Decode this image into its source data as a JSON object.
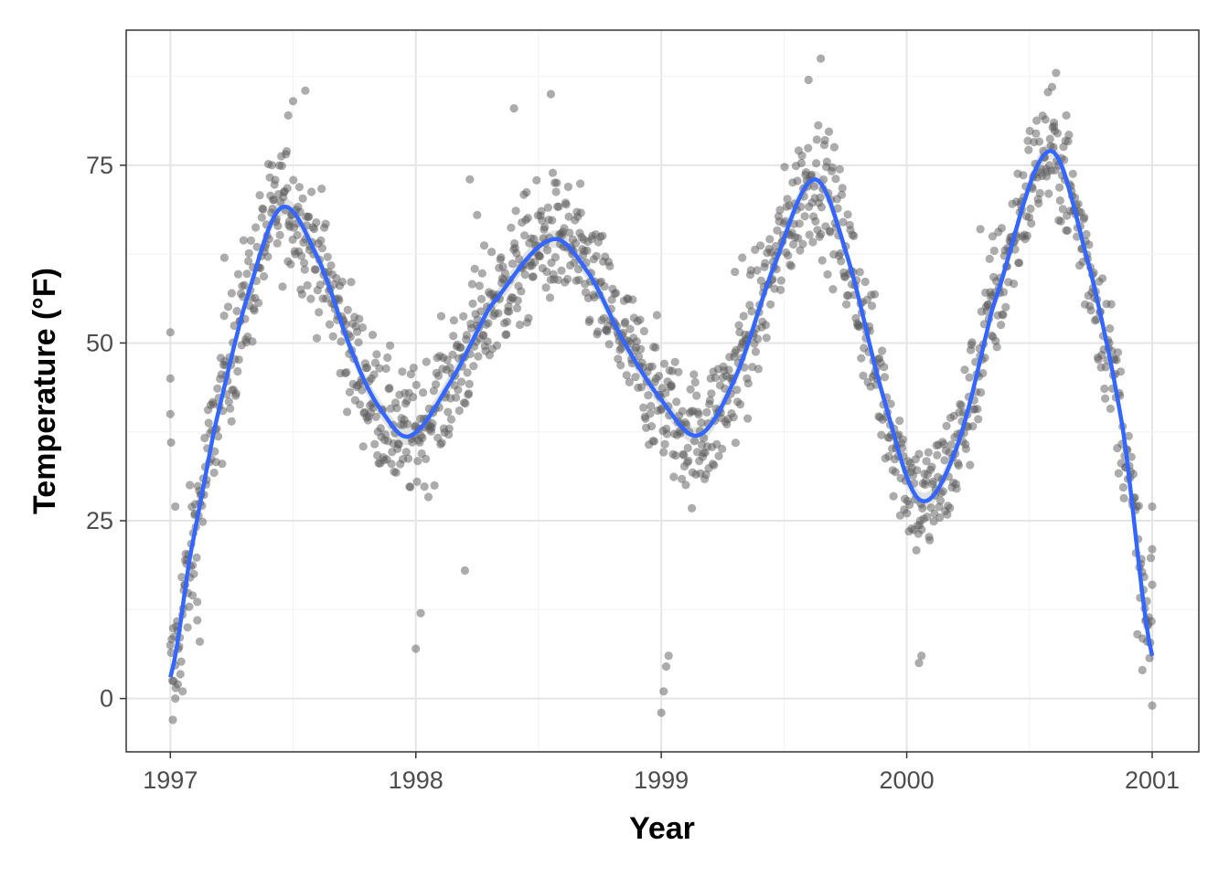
{
  "chart_data": {
    "type": "scatter",
    "title": "",
    "xlabel": "Year",
    "ylabel": "Temperature (°F)",
    "xlim": [
      1996.82,
      2001.19
    ],
    "ylim": [
      -7.5,
      94
    ],
    "x_ticks": [
      1997,
      1998,
      1999,
      2000,
      2001
    ],
    "y_ticks": [
      0,
      25,
      50,
      75
    ],
    "x_tick_labels": [
      "1997",
      "1998",
      "1999",
      "2000",
      "2001"
    ],
    "y_tick_labels": [
      "0",
      "25",
      "50",
      "75"
    ],
    "grid": true,
    "legend": "none",
    "point_color": "#595959",
    "point_opacity": 0.5,
    "smooth_color": "#3366FF",
    "band_color": "#bfbfbf",
    "seasonal_model": {
      "anchors": [
        [
          1997.0,
          3
        ],
        [
          1997.08,
          20
        ],
        [
          1997.18,
          38
        ],
        [
          1997.3,
          55
        ],
        [
          1997.45,
          69
        ],
        [
          1997.6,
          62
        ],
        [
          1997.75,
          48
        ],
        [
          1997.87,
          40
        ],
        [
          1997.98,
          37
        ],
        [
          1998.15,
          45
        ],
        [
          1998.3,
          55
        ],
        [
          1998.55,
          64.5
        ],
        [
          1998.7,
          60
        ],
        [
          1998.85,
          50
        ],
        [
          1999.0,
          42
        ],
        [
          1999.15,
          37
        ],
        [
          1999.3,
          45
        ],
        [
          1999.45,
          60
        ],
        [
          1999.62,
          73
        ],
        [
          1999.75,
          63
        ],
        [
          1999.9,
          43
        ],
        [
          2000.05,
          28
        ],
        [
          2000.2,
          35
        ],
        [
          2000.35,
          55
        ],
        [
          2000.58,
          77
        ],
        [
          2000.75,
          60
        ],
        [
          2000.88,
          38
        ],
        [
          2001.0,
          6
        ]
      ],
      "spread": 7.5
    },
    "series": [
      {
        "name": "",
        "points": [
          [
            1997.0,
            51.5
          ],
          [
            1997.0,
            45
          ],
          [
            1997.0,
            40
          ],
          [
            1997.003,
            36
          ],
          [
            1997.01,
            -3
          ],
          [
            1997.02,
            0
          ],
          [
            1997.03,
            2
          ],
          [
            1997.05,
            1
          ],
          [
            1997.06,
            16
          ],
          [
            1997.08,
            17
          ],
          [
            1997.02,
            27
          ],
          [
            1997.1,
            26
          ],
          [
            1997.09,
            14.5
          ],
          [
            1997.11,
            11
          ],
          [
            1997.07,
            10
          ],
          [
            1997.12,
            8
          ],
          [
            1997.55,
            85.5
          ],
          [
            1997.5,
            84
          ],
          [
            1997.48,
            82
          ],
          [
            1998.4,
            83
          ],
          [
            1998.55,
            85
          ],
          [
            1999.65,
            90
          ],
          [
            1999.6,
            87
          ],
          [
            2000.65,
            82
          ],
          [
            2000.6,
            81
          ],
          [
            1998.2,
            18
          ],
          [
            1998.0,
            7
          ],
          [
            1998.02,
            12
          ],
          [
            1999.0,
            -2
          ],
          [
            1999.01,
            1
          ],
          [
            1999.02,
            4.5
          ],
          [
            1999.03,
            6
          ],
          [
            2000.05,
            5
          ],
          [
            2000.06,
            6
          ],
          [
            2000.96,
            4
          ],
          [
            2001.0,
            -1
          ],
          [
            2000.98,
            8
          ],
          [
            2001.0,
            21
          ],
          [
            2001.0,
            27
          ],
          [
            2001.0,
            16
          ],
          [
            1999.3,
            60
          ],
          [
            1999.33,
            62
          ],
          [
            2000.35,
            65
          ],
          [
            2000.3,
            66
          ],
          [
            1998.22,
            73
          ],
          [
            1998.25,
            68
          ],
          [
            1997.25,
            57
          ],
          [
            1997.22,
            62
          ]
        ]
      }
    ]
  }
}
